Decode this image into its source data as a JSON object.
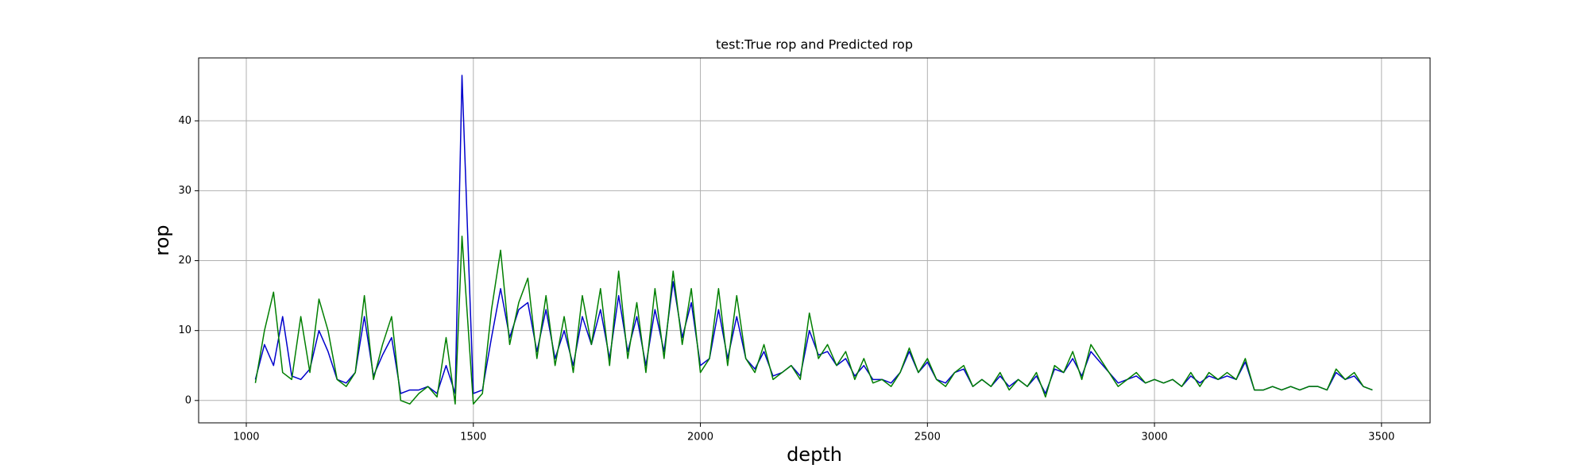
{
  "chart_data": {
    "type": "line",
    "title": "test:True rop and Predicted rop",
    "xlabel": "depth",
    "ylabel": "rop",
    "x": [
      1020,
      1040,
      1060,
      1080,
      1100,
      1120,
      1140,
      1160,
      1180,
      1200,
      1220,
      1240,
      1260,
      1280,
      1300,
      1320,
      1340,
      1360,
      1380,
      1400,
      1420,
      1440,
      1460,
      1475,
      1500,
      1520,
      1540,
      1560,
      1580,
      1600,
      1620,
      1640,
      1660,
      1680,
      1700,
      1720,
      1740,
      1760,
      1780,
      1800,
      1820,
      1840,
      1860,
      1880,
      1900,
      1920,
      1940,
      1960,
      1980,
      2000,
      2020,
      2040,
      2060,
      2080,
      2100,
      2120,
      2140,
      2160,
      2180,
      2200,
      2220,
      2240,
      2260,
      2280,
      2300,
      2320,
      2340,
      2360,
      2380,
      2400,
      2420,
      2440,
      2460,
      2480,
      2500,
      2520,
      2540,
      2560,
      2580,
      2600,
      2620,
      2640,
      2660,
      2680,
      2700,
      2720,
      2740,
      2760,
      2780,
      2800,
      2820,
      2840,
      2860,
      2880,
      2900,
      2920,
      2940,
      2960,
      2980,
      3000,
      3020,
      3040,
      3060,
      3080,
      3100,
      3120,
      3140,
      3160,
      3180,
      3200,
      3220,
      3240,
      3260,
      3280,
      3300,
      3320,
      3340,
      3360,
      3380,
      3400,
      3420,
      3440,
      3460,
      3480
    ],
    "series": [
      {
        "color": "#0000cc",
        "values": [
          3,
          8,
          5,
          12,
          3.5,
          3,
          4.5,
          10,
          7,
          3,
          2.5,
          4,
          12,
          3.5,
          6.5,
          9,
          1,
          1.5,
          1.5,
          2,
          1,
          5,
          1,
          46.5,
          1,
          1.5,
          9,
          16,
          9,
          13,
          14,
          7,
          13,
          6,
          10,
          5,
          12,
          8,
          13,
          6,
          15,
          7,
          12,
          5,
          13,
          7,
          17,
          9,
          14,
          5,
          6,
          13,
          6,
          12,
          6,
          4.5,
          7,
          3.5,
          4,
          5,
          3.5,
          10,
          6.5,
          7,
          5,
          6,
          3.5,
          5,
          3,
          3,
          2.5,
          4,
          7,
          4,
          5.5,
          3,
          2.5,
          4,
          4.5,
          2,
          3,
          2,
          3.5,
          2,
          3,
          2,
          3.5,
          1,
          4.5,
          4,
          6,
          3.5,
          7,
          5.5,
          4,
          2.5,
          3,
          3.5,
          2.5,
          3,
          2.5,
          3,
          2,
          3.5,
          2.5,
          3.5,
          3,
          3.5,
          3,
          5.5,
          1.5,
          1.5,
          2,
          1.5,
          2,
          1.5,
          2,
          2,
          1.5,
          4,
          3,
          3.5,
          2,
          1.5
        ]
      },
      {
        "color": "#007f00",
        "values": [
          2.5,
          10,
          15.5,
          4,
          3,
          12,
          4,
          14.5,
          10,
          3,
          2,
          4,
          15,
          3,
          8,
          12,
          0,
          -0.5,
          1,
          2,
          0.5,
          9,
          -0.5,
          23.5,
          -0.5,
          1,
          13,
          21.5,
          8,
          14,
          17.5,
          6,
          15,
          5,
          12,
          4,
          15,
          8,
          16,
          5,
          18.5,
          6,
          14,
          4,
          16,
          6,
          18.5,
          8,
          16,
          4,
          6,
          16,
          5,
          15,
          6,
          4,
          8,
          3,
          4,
          5,
          3,
          12.5,
          6,
          8,
          5,
          7,
          3,
          6,
          2.5,
          3,
          2,
          4,
          7.5,
          4,
          6,
          3,
          2,
          4,
          5,
          2,
          3,
          2,
          4,
          1.5,
          3,
          2,
          4,
          0.5,
          5,
          4,
          7,
          3,
          8,
          6,
          4,
          2,
          3,
          4,
          2.5,
          3,
          2.5,
          3,
          2,
          4,
          2,
          4,
          3,
          4,
          3,
          6,
          1.5,
          1.5,
          2,
          1.5,
          2,
          1.5,
          2,
          2,
          1.5,
          4.5,
          3,
          4,
          2,
          1.5
        ]
      }
    ],
    "xlim": [
      895,
      3607
    ],
    "ylim": [
      -3.2,
      49
    ],
    "xticks": [
      1000,
      1500,
      2000,
      2500,
      3000,
      3500
    ],
    "yticks": [
      0,
      10,
      20,
      30,
      40
    ],
    "grid": true
  }
}
